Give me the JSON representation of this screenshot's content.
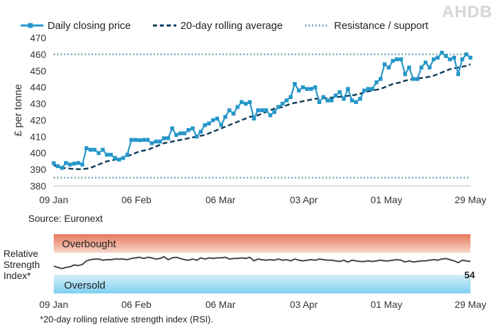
{
  "logo_text": "AHDB",
  "source": "Source: Euronext",
  "footnote": "*20-day rolling relative strength index (RSI).",
  "rsi_label": [
    "Relative",
    "Strength",
    "Index*"
  ],
  "colors": {
    "price": "#2596c9",
    "average": "#0f3d5c",
    "resistance": "#7fa4b4",
    "overbought_top": "#e8785c",
    "overbought_bottom": "#f7d7c8",
    "oversold_top": "#d4eef9",
    "oversold_bottom": "#7fd0ee",
    "rsi_line": "#444444"
  },
  "chart_data": [
    {
      "type": "line",
      "ylabel": "£ per tonne",
      "ylim": [
        380,
        470
      ],
      "yticks": [
        380,
        390,
        400,
        410,
        420,
        430,
        440,
        450,
        460,
        470
      ],
      "x_tick_labels": [
        "09 Jan",
        "06 Feb",
        "06 Mar",
        "03 Apr",
        "01 May",
        "29 May"
      ],
      "legend_position": "top",
      "grid": false,
      "resistance_levels": [
        460,
        385
      ],
      "series": [
        {
          "name": "Daily closing price",
          "values": [
            393.8,
            392,
            391,
            394,
            393,
            393.6,
            394,
            393,
            403,
            402,
            402,
            400,
            402,
            399,
            399,
            397,
            396,
            397,
            399,
            408,
            408,
            407.8,
            408,
            408,
            406,
            407,
            407,
            409,
            409,
            415,
            411,
            412,
            412,
            414,
            415,
            410,
            413,
            417,
            418,
            420,
            421,
            417,
            422,
            426,
            424,
            428,
            431,
            430,
            431,
            421,
            426,
            426,
            426,
            423,
            425,
            428,
            430,
            432,
            434,
            442,
            438,
            440,
            439,
            439,
            440,
            431,
            434,
            432,
            432,
            435,
            437,
            433,
            439,
            432,
            431,
            433,
            438,
            439,
            439,
            443,
            445,
            454,
            452,
            456,
            457,
            457,
            448,
            452,
            445,
            445,
            452,
            455,
            452,
            457,
            458,
            461,
            459,
            457,
            458,
            448,
            457,
            460,
            458
          ],
          "last_value": 458
        },
        {
          "name": "20-day rolling average",
          "values": [
            392.5,
            392,
            391,
            390.8,
            390.5,
            390.3,
            390.2,
            390.2,
            390.5,
            391,
            392,
            393,
            394,
            395,
            395.5,
            396,
            396.5,
            397,
            398,
            399,
            400,
            401,
            401.5,
            402,
            403,
            404,
            405,
            406,
            406.5,
            407,
            407.5,
            408,
            408.5,
            409,
            409.5,
            410,
            410.5,
            411,
            412,
            413,
            414,
            415,
            416,
            417,
            418,
            419,
            420,
            421,
            422,
            422.5,
            423,
            424,
            425,
            426,
            427,
            427.5,
            428,
            429,
            430,
            430.5,
            431,
            431.5,
            432,
            432.5,
            433,
            433,
            433.3,
            433.5,
            433.7,
            434,
            434.2,
            434.5,
            434.8,
            435,
            435.5,
            436,
            437,
            437.5,
            438,
            438.5,
            439,
            440,
            441,
            442,
            442.5,
            443,
            444,
            444.5,
            445,
            445.3,
            445.6,
            446,
            446.4,
            447,
            448,
            449,
            450,
            451,
            451.5,
            452,
            452.5,
            453,
            454
          ]
        },
        {
          "name": "Resistance / support",
          "values": [
            460,
            385
          ]
        }
      ]
    },
    {
      "type": "line",
      "title_lines": [
        "Relative",
        "Strength",
        "Index*"
      ],
      "x_tick_labels": [
        "09 Jan",
        "06 Feb",
        "06 Mar",
        "03 Apr",
        "01 May",
        "29 May"
      ],
      "bands": {
        "overbought": "Overbought",
        "oversold": "Oversold"
      },
      "ylim": [
        0,
        100
      ],
      "overbought_level": 70,
      "oversold_level": 30,
      "series": [
        {
          "name": "RSI",
          "values": [
            46,
            44,
            42,
            44,
            45,
            48,
            47,
            49,
            55,
            57,
            58,
            58,
            56,
            57,
            57,
            58,
            58,
            58,
            57,
            59,
            60,
            61,
            59,
            61,
            60,
            58,
            59,
            62,
            57,
            60,
            61,
            59,
            57,
            56,
            58,
            56,
            60,
            58,
            60,
            59,
            60,
            60,
            61,
            58,
            59,
            59,
            60,
            59,
            61,
            55,
            58,
            57,
            56,
            57,
            56,
            58,
            56,
            57,
            55,
            58,
            56,
            55,
            56,
            57,
            56,
            58,
            57,
            56,
            56,
            55,
            54,
            56,
            53,
            56,
            55,
            54,
            54,
            55,
            54,
            55,
            56,
            55,
            55,
            56,
            57,
            56,
            53,
            55,
            53,
            54,
            55,
            55,
            56,
            57,
            56,
            58,
            59,
            57,
            55,
            52,
            56,
            55,
            54
          ],
          "last_value": 54
        }
      ]
    }
  ]
}
